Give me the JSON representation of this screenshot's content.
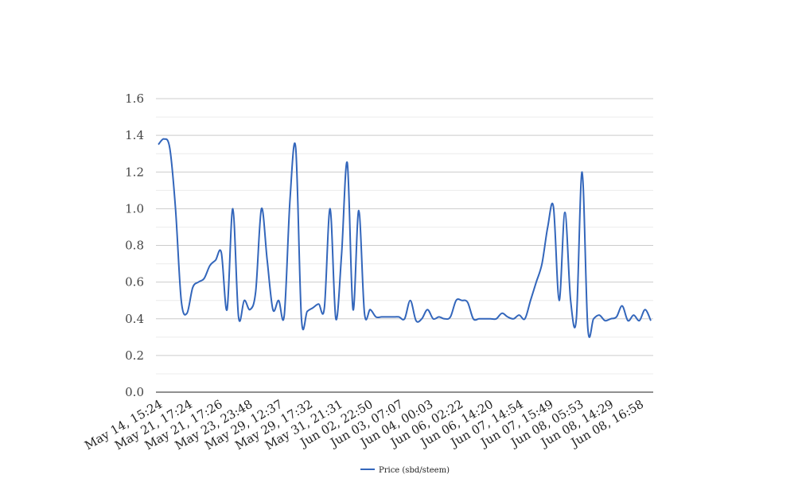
{
  "chart_data": {
    "type": "line",
    "title": "",
    "xlabel": "",
    "ylabel": "",
    "ylim": [
      0,
      1.6
    ],
    "yticks": [
      "0.0",
      "0.2",
      "0.4",
      "0.6",
      "0.8",
      "1.0",
      "1.2",
      "1.4",
      "1.6"
    ],
    "grid": true,
    "legend_position": "bottom",
    "x_tick_labels": [
      "May 14, 15:24",
      "May 21, 17:24",
      "May 21, 17:26",
      "May 23, 23:48",
      "May 29, 12:37",
      "May 29, 17:32",
      "May 31, 21:31",
      "Jun 02, 22:50",
      "Jun 03, 07:07",
      "Jun 04, 00:03",
      "Jun 06, 02:22",
      "Jun 06, 14:20",
      "Jun 07, 14:54",
      "Jun 07, 15:49",
      "Jun 08, 05:53",
      "Jun 08, 14:29",
      "Jun 08, 16:58"
    ],
    "series": [
      {
        "name": "Price (sbd/steem)",
        "color": "#3366bb",
        "values": [
          1.35,
          1.38,
          1.33,
          1.0,
          0.5,
          0.43,
          0.57,
          0.6,
          0.62,
          0.69,
          0.72,
          0.76,
          0.45,
          1.0,
          0.41,
          0.5,
          0.45,
          0.55,
          1.0,
          0.72,
          0.45,
          0.5,
          0.42,
          1.05,
          1.33,
          0.4,
          0.44,
          0.46,
          0.48,
          0.46,
          1.0,
          0.4,
          0.75,
          1.25,
          0.45,
          0.99,
          0.43,
          0.45,
          0.41,
          0.41,
          0.41,
          0.41,
          0.41,
          0.4,
          0.5,
          0.39,
          0.4,
          0.45,
          0.4,
          0.41,
          0.4,
          0.41,
          0.5,
          0.5,
          0.49,
          0.4,
          0.4,
          0.4,
          0.4,
          0.4,
          0.43,
          0.41,
          0.4,
          0.42,
          0.4,
          0.5,
          0.6,
          0.7,
          0.9,
          1.01,
          0.5,
          0.98,
          0.5,
          0.4,
          1.2,
          0.35,
          0.4,
          0.42,
          0.39,
          0.4,
          0.41,
          0.47,
          0.39,
          0.42,
          0.39,
          0.45,
          0.39
        ]
      }
    ]
  }
}
